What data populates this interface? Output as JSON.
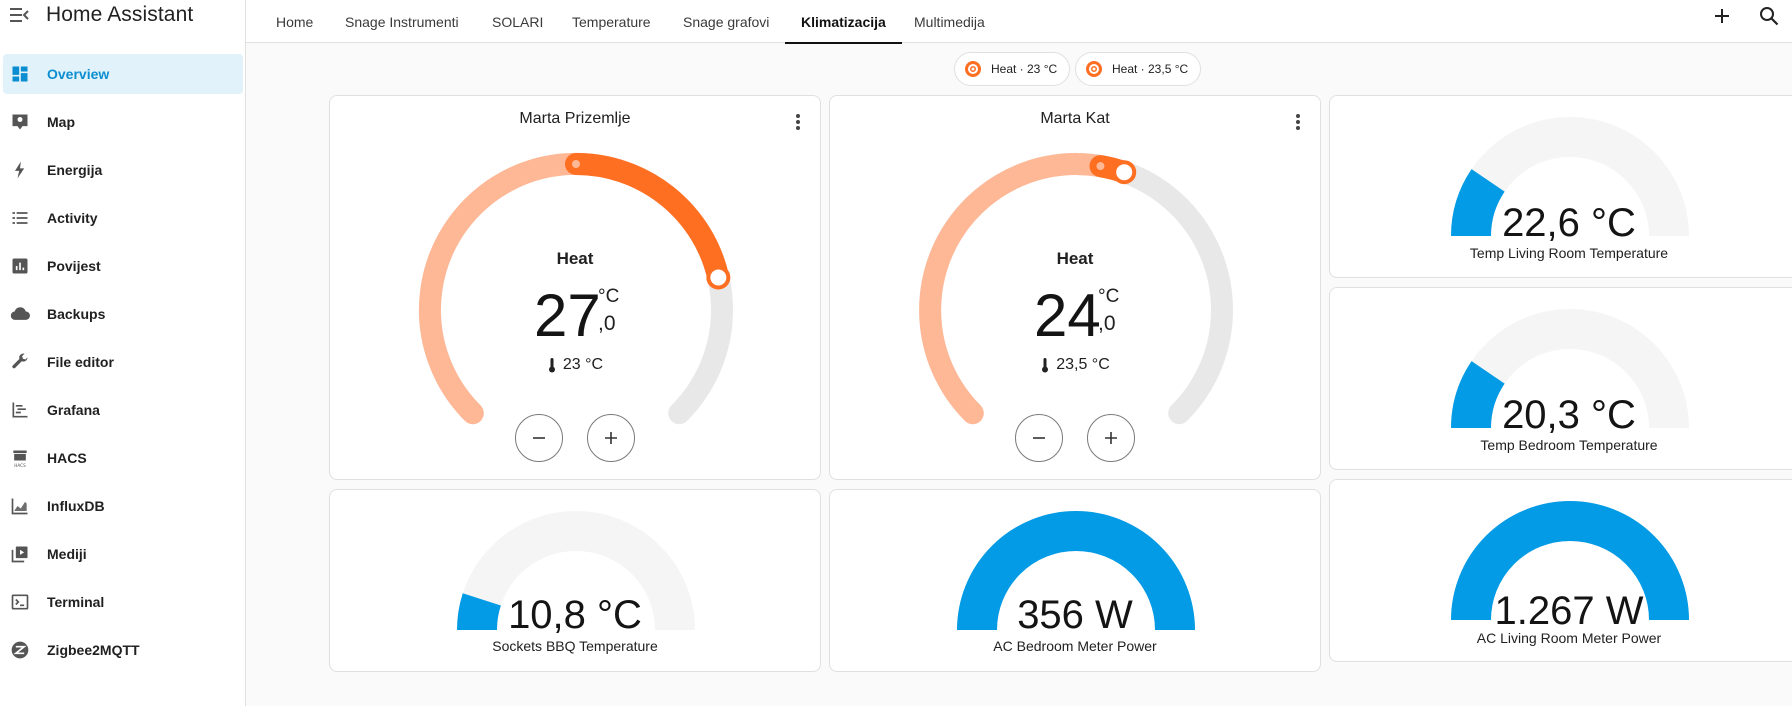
{
  "app": {
    "title": "Home Assistant"
  },
  "sidebar": {
    "items": [
      {
        "label": "Overview",
        "icon": "view-dashboard-icon",
        "active": true
      },
      {
        "label": "Map",
        "icon": "map-icon"
      },
      {
        "label": "Energija",
        "icon": "lightning-bolt-icon"
      },
      {
        "label": "Activity",
        "icon": "format-list-bulleted-icon"
      },
      {
        "label": "Povijest",
        "icon": "chart-box-icon"
      },
      {
        "label": "Backups",
        "icon": "cloud-icon"
      },
      {
        "label": "File editor",
        "icon": "wrench-icon"
      },
      {
        "label": "Grafana",
        "icon": "chart-timeline-icon"
      },
      {
        "label": "HACS",
        "icon": "hacs-icon"
      },
      {
        "label": "InfluxDB",
        "icon": "chart-areaspline-icon"
      },
      {
        "label": "Mediji",
        "icon": "play-box-multiple-icon"
      },
      {
        "label": "Terminal",
        "icon": "console-icon"
      },
      {
        "label": "Zigbee2MQTT",
        "icon": "zigbee-icon"
      }
    ]
  },
  "tabs": [
    {
      "label": "Home"
    },
    {
      "label": "Snage Instrumenti"
    },
    {
      "label": "SOLARI"
    },
    {
      "label": "Temperature"
    },
    {
      "label": "Snage grafovi"
    },
    {
      "label": "Klimatizacija",
      "active": true
    },
    {
      "label": "Multimedija"
    }
  ],
  "chips": [
    {
      "label": "Heat · 23 °C"
    },
    {
      "label": "Heat · 23,5 °C"
    }
  ],
  "thermostats": [
    {
      "name": "Marta Prizemlje",
      "mode": "Heat",
      "target_int": "27",
      "target_dec": ",0",
      "unit": "°C",
      "current": "23 °C",
      "target": 27.0,
      "current_value": 23,
      "min": 16,
      "max": 30
    },
    {
      "name": "Marta Kat",
      "mode": "Heat",
      "target_int": "24",
      "target_dec": ",0",
      "unit": "°C",
      "current": "23,5 °C",
      "target": 24.0,
      "current_value": 23.5,
      "min": 16,
      "max": 30
    }
  ],
  "gauges": [
    {
      "value_text": "22,6 °C",
      "name": "Temp Living Room Temperature",
      "fraction": 0.19
    },
    {
      "value_text": "20,3 °C",
      "name": "Temp Bedroom Temperature",
      "fraction": 0.19
    },
    {
      "value_text": "10,8 °C",
      "name": "Sockets BBQ Temperature",
      "fraction": 0.1
    },
    {
      "value_text": "356 W",
      "name": "AC Bedroom Meter Power",
      "fraction": 1.0
    },
    {
      "value_text": "1.267 W",
      "name": "AC Living Room Meter Power",
      "fraction": 1.0
    }
  ],
  "colors": {
    "accent": "#0a8ed1",
    "heat": "#ff6f22",
    "heat_light": "#ffb896",
    "track": "#e8e8e8",
    "gauge_blue": "#039be5",
    "gauge_track": "#f5f5f5"
  }
}
